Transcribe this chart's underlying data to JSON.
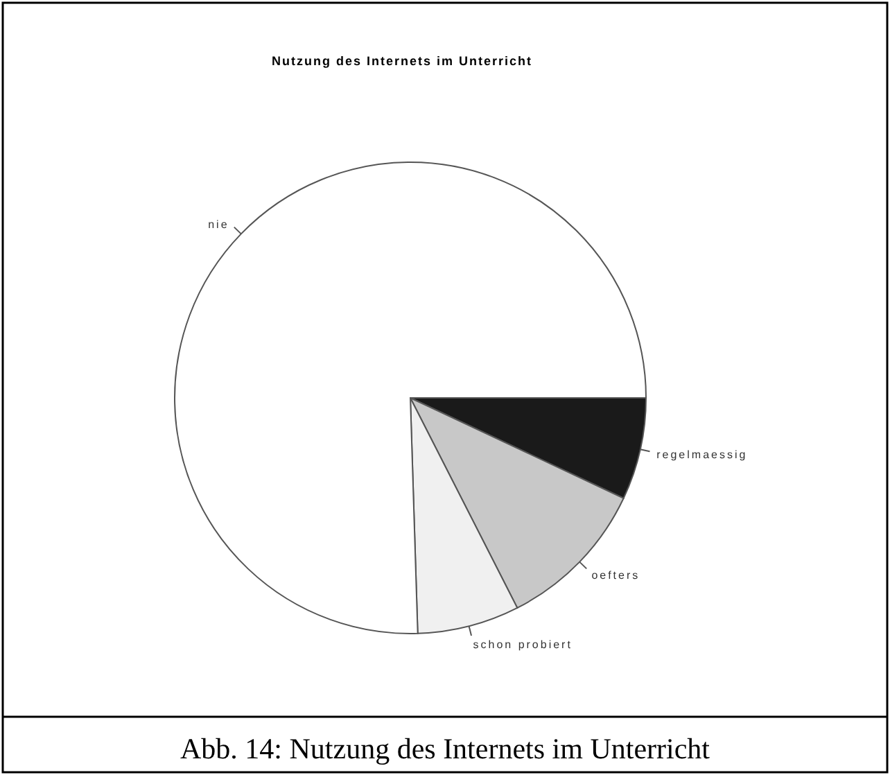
{
  "chart_data": {
    "type": "pie",
    "title": "Nutzung des Internets im Unterricht",
    "categories": [
      "regelmaessig",
      "oefters",
      "schon probiert",
      "nie"
    ],
    "values": [
      7,
      10.5,
      7,
      75.5
    ],
    "colors": [
      "#1a1a1a",
      "#c8c8c8",
      "#f0f0f0",
      "#ffffff"
    ],
    "annotations": [
      "Abb. 14: Nutzung des Internets im Unterricht"
    ]
  }
}
